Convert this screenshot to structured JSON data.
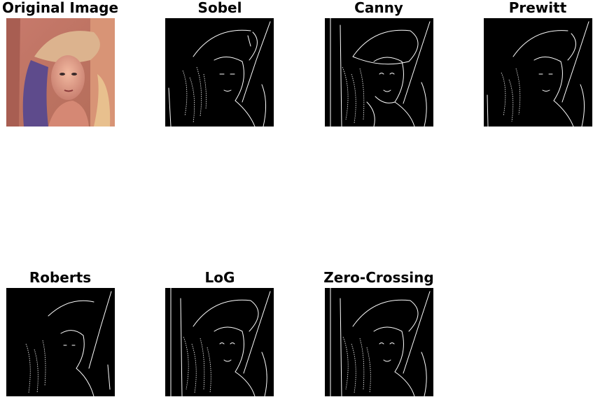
{
  "panels": [
    {
      "id": "original",
      "title": "Original Image"
    },
    {
      "id": "sobel",
      "title": "Sobel"
    },
    {
      "id": "canny",
      "title": "Canny"
    },
    {
      "id": "prewitt",
      "title": "Prewitt"
    },
    {
      "id": "roberts",
      "title": "Roberts"
    },
    {
      "id": "log",
      "title": "LoG"
    },
    {
      "id": "zerocross",
      "title": "Zero-Crossing"
    }
  ],
  "colors": {
    "background": "#ffffff",
    "edge_map_background": "#000000",
    "edge_color": "#ffffff",
    "original_warm": "#d9837a",
    "original_hair": "#5a4a8a",
    "original_hat": "#e8c6a0"
  }
}
